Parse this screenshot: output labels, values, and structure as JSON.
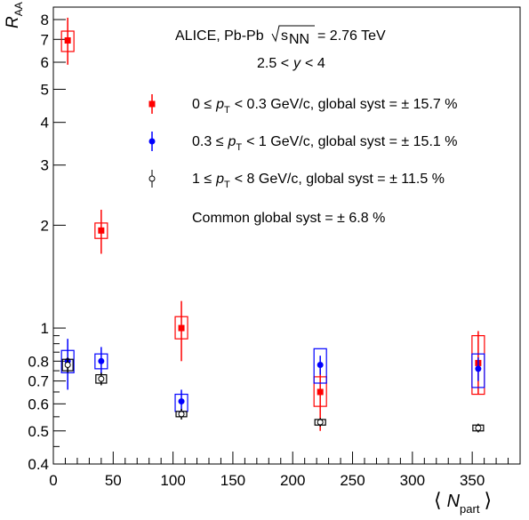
{
  "chart_data": {
    "type": "scatter",
    "title": "",
    "xlabel": "N",
    "xlabel_sub": "part",
    "ylabel": "R",
    "ylabel_sub": "AA",
    "xlim": [
      0,
      390
    ],
    "ylim": [
      0.4,
      8.7
    ],
    "yscale": "log",
    "grid": false,
    "x_ticks": [
      0,
      50,
      100,
      150,
      200,
      250,
      300,
      350
    ],
    "x_tick_labels": [
      "0",
      "50",
      "100",
      "150",
      "200",
      "250",
      "300",
      "350"
    ],
    "y_ticks": [
      0.4,
      0.5,
      0.6,
      0.7,
      0.8,
      1,
      2,
      3,
      4,
      5,
      6,
      7,
      8
    ],
    "y_tick_labels": [
      "0.4",
      "0.5",
      "0.6",
      "0.7",
      "0.8",
      "1",
      "2",
      "3",
      "4",
      "5",
      "6",
      "7",
      "8"
    ],
    "annotations": {
      "experiment_prefix": "ALICE, Pb-Pb",
      "energy_suffix": "= 2.76 TeV",
      "rapidity_left": "2.5 <",
      "rapidity_var": "y",
      "rapidity_right": "< 4",
      "common_syst": "Common global syst = ± 6.8 %"
    },
    "series": [
      {
        "name": "0 ≤ p_T < 0.3 GeV/c, global syst = ± 15.7 %",
        "legend_pre": "0 ≤",
        "legend_post": "< 0.3 GeV/c, global syst = ± 15.7 %",
        "color": "#ff0000",
        "marker": "square",
        "points": [
          {
            "x": 12,
            "y": 6.95,
            "stat_lo": 5.9,
            "stat_hi": 8.1,
            "sys_lo": 6.45,
            "sys_hi": 7.4
          },
          {
            "x": 40,
            "y": 1.93,
            "stat_lo": 1.65,
            "stat_hi": 2.22,
            "sys_lo": 1.83,
            "sys_hi": 2.03
          },
          {
            "x": 107,
            "y": 1.0,
            "stat_lo": 0.8,
            "stat_hi": 1.2,
            "sys_lo": 0.93,
            "sys_hi": 1.08
          },
          {
            "x": 223,
            "y": 0.65,
            "stat_lo": 0.5,
            "stat_hi": 0.76,
            "sys_lo": 0.59,
            "sys_hi": 0.72
          },
          {
            "x": 355,
            "y": 0.79,
            "stat_lo": 0.64,
            "stat_hi": 0.98,
            "sys_lo": 0.64,
            "sys_hi": 0.95
          }
        ]
      },
      {
        "name": "0.3 ≤ p_T < 1 GeV/c, global syst = ± 15.1 %",
        "legend_pre": "0.3 ≤",
        "legend_post": "< 1 GeV/c, global syst = ± 15.1 %",
        "color": "#0000ff",
        "marker": "circle",
        "points": [
          {
            "x": 12,
            "y": 0.8,
            "stat_lo": 0.66,
            "stat_hi": 0.93,
            "sys_lo": 0.74,
            "sys_hi": 0.86
          },
          {
            "x": 40,
            "y": 0.8,
            "stat_lo": 0.73,
            "stat_hi": 0.88,
            "sys_lo": 0.76,
            "sys_hi": 0.84
          },
          {
            "x": 107,
            "y": 0.61,
            "stat_lo": 0.56,
            "stat_hi": 0.66,
            "sys_lo": 0.57,
            "sys_hi": 0.64
          },
          {
            "x": 223,
            "y": 0.78,
            "stat_lo": 0.73,
            "stat_hi": 0.83,
            "sys_lo": 0.69,
            "sys_hi": 0.87
          },
          {
            "x": 355,
            "y": 0.76,
            "stat_lo": 0.7,
            "stat_hi": 0.82,
            "sys_lo": 0.67,
            "sys_hi": 0.84
          }
        ]
      },
      {
        "name": "1 ≤ p_T < 8 GeV/c, global syst = ± 11.5 %",
        "legend_pre": "1 ≤",
        "legend_post": "< 8 GeV/c, global syst = ± 11.5 %",
        "color": "#000000",
        "marker": "open-circle",
        "points": [
          {
            "x": 12,
            "y": 0.78,
            "stat_lo": 0.74,
            "stat_hi": 0.82,
            "sys_lo": 0.75,
            "sys_hi": 0.81
          },
          {
            "x": 40,
            "y": 0.71,
            "stat_lo": 0.68,
            "stat_hi": 0.74,
            "sys_lo": 0.69,
            "sys_hi": 0.73
          },
          {
            "x": 107,
            "y": 0.56,
            "stat_lo": 0.54,
            "stat_hi": 0.58,
            "sys_lo": 0.55,
            "sys_hi": 0.57
          },
          {
            "x": 223,
            "y": 0.53,
            "stat_lo": 0.515,
            "stat_hi": 0.545,
            "sys_lo": 0.52,
            "sys_hi": 0.54
          },
          {
            "x": 355,
            "y": 0.51,
            "stat_lo": 0.495,
            "stat_hi": 0.525,
            "sys_lo": 0.5,
            "sys_hi": 0.52
          }
        ]
      }
    ]
  }
}
